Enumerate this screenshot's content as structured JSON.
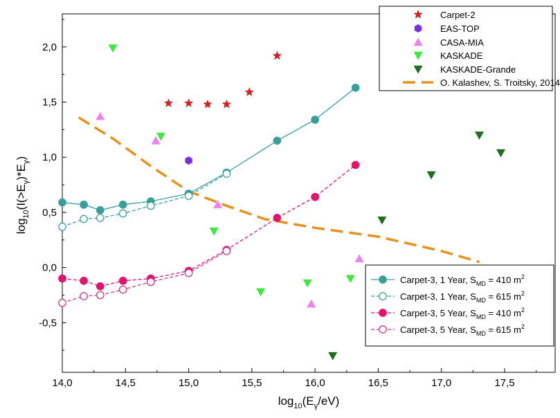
{
  "chart_data": {
    "type": "scatter",
    "xlabel": {
      "prefix": "log",
      "base": "10",
      "body": "(E",
      "sub": "γ",
      "tail": "/eV)"
    },
    "ylabel": {
      "prefix": "log",
      "base": "10",
      "a": "(I(>E",
      "sub1": "γ",
      "b": ")*E",
      "sub2": "γ",
      "c": ")"
    },
    "xlim": [
      14.0,
      17.9
    ],
    "ylim": [
      -0.95,
      2.3
    ],
    "xticks": [
      14.0,
      14.5,
      15.0,
      15.5,
      16.0,
      16.5,
      17.0,
      17.5
    ],
    "xtick_labels": [
      "14,0",
      "14,5",
      "15,0",
      "15,5",
      "16,0",
      "16,5",
      "17,0",
      "17,5"
    ],
    "yticks": [
      -0.5,
      0.0,
      0.5,
      1.0,
      1.5,
      2.0
    ],
    "ytick_labels": [
      "-0,5",
      "0,0",
      "0,5",
      "1,0",
      "1,5",
      "2,0"
    ],
    "legend_top": {
      "placement": "top-right",
      "entries": [
        {
          "label": "Carpet-2",
          "marker": "star",
          "color": "#d42020"
        },
        {
          "label": "EAS-TOP",
          "marker": "hexagon",
          "color": "#7b2fd6"
        },
        {
          "label": "CASA-MIA",
          "marker": "triangle-up",
          "color": "#ee82ee"
        },
        {
          "label": "KASKADE",
          "marker": "triangle-down",
          "color": "#3ee83e"
        },
        {
          "label": "KASKADE-Grande",
          "marker": "triangle-down",
          "color": "#1f6e1f"
        },
        {
          "label": "O. Kalashev, S. Troitsky, 2014",
          "marker": "dash",
          "color": "#e8901e"
        }
      ]
    },
    "legend_bottom": {
      "placement": "lower-right",
      "entries": [
        {
          "pre": "Carpet-3, 1 Year, S",
          "sub": "MD",
          "post": " = 410 m",
          "sup": "2",
          "color": "#3a9e9a",
          "filled": true,
          "dashed": false
        },
        {
          "pre": "Carpet-3, 1 Year, S",
          "sub": "MD",
          "post": " = 615 m",
          "sup": "2",
          "color": "#3a9e9a",
          "filled": false,
          "dashed": true
        },
        {
          "pre": "Carpet-3, 5 Year, S",
          "sub": "MD",
          "post": " = 410 m",
          "sup": "2",
          "color": "#e0156e",
          "filled": true,
          "dashed": true
        },
        {
          "pre": "Carpet-3, 5 Year, S",
          "sub": "MD",
          "post": " = 615 m",
          "sup": "2",
          "color": "#c83a8e",
          "filled": false,
          "dashed": true
        }
      ]
    },
    "series": [
      {
        "name": "Carpet-2",
        "kind": "points",
        "marker": "star",
        "color": "#d42020",
        "x": [
          14.84,
          15.0,
          15.15,
          15.3,
          15.48,
          15.7
        ],
        "y": [
          1.49,
          1.49,
          1.48,
          1.48,
          1.59,
          1.92
        ]
      },
      {
        "name": "EAS-TOP",
        "kind": "points",
        "marker": "hexagon",
        "color": "#7b2fd6",
        "x": [
          15.0
        ],
        "y": [
          0.97
        ]
      },
      {
        "name": "CASA-MIA",
        "kind": "points",
        "marker": "triangle-up",
        "color": "#ee82ee",
        "x": [
          14.3,
          14.74,
          15.23,
          15.97,
          16.35
        ],
        "y": [
          1.37,
          1.15,
          0.57,
          -0.33,
          0.08
        ]
      },
      {
        "name": "KASKADE",
        "kind": "points",
        "marker": "triangle-down",
        "color": "#3ee83e",
        "x": [
          14.4,
          14.78,
          15.2,
          15.57,
          15.94,
          16.28
        ],
        "y": [
          1.99,
          1.19,
          0.33,
          -0.22,
          -0.14,
          -0.1
        ]
      },
      {
        "name": "KASKADE-Grande",
        "kind": "points",
        "marker": "triangle-down",
        "color": "#1f6e1f",
        "x": [
          16.14,
          16.53,
          16.92,
          17.3,
          17.47
        ],
        "y": [
          -0.8,
          0.43,
          0.84,
          1.2,
          1.04
        ]
      },
      {
        "name": "O. Kalashev, S. Troitsky, 2014",
        "kind": "line",
        "color": "#e8901e",
        "x": [
          14.13,
          14.4,
          14.7,
          15.0,
          15.3,
          15.6,
          16.0,
          16.5,
          17.0,
          17.3
        ],
        "y": [
          1.36,
          1.17,
          0.92,
          0.69,
          0.56,
          0.44,
          0.36,
          0.28,
          0.15,
          0.05
        ]
      },
      {
        "name": "Carpet-3, 1 Year, S_MD = 410 m^2",
        "kind": "linepoints",
        "color": "#3a9e9a",
        "filled": true,
        "dashed": false,
        "x": [
          14.0,
          14.17,
          14.3,
          14.48,
          14.7,
          15.0,
          15.3,
          15.7,
          16.0,
          16.32
        ],
        "y": [
          0.59,
          0.57,
          0.52,
          0.57,
          0.6,
          0.67,
          0.86,
          1.15,
          1.34,
          1.63
        ]
      },
      {
        "name": "Carpet-3, 1 Year, S_MD = 615 m^2",
        "kind": "linepoints",
        "color": "#3a9e9a",
        "filled": false,
        "dashed": true,
        "x": [
          14.0,
          14.17,
          14.3,
          14.48,
          14.7,
          15.0,
          15.3
        ],
        "y": [
          0.37,
          0.44,
          0.45,
          0.49,
          0.56,
          0.65,
          0.85
        ]
      },
      {
        "name": "Carpet-3, 5 Year, S_MD = 410 m^2",
        "kind": "linepoints",
        "color": "#e0156e",
        "filled": true,
        "dashed": true,
        "x": [
          14.0,
          14.17,
          14.3,
          14.48,
          14.7,
          15.0,
          15.3,
          15.7,
          16.0,
          16.32
        ],
        "y": [
          -0.1,
          -0.12,
          -0.17,
          -0.12,
          -0.1,
          -0.03,
          0.16,
          0.45,
          0.64,
          0.93
        ]
      },
      {
        "name": "Carpet-3, 5 Year, S_MD = 615 m^2",
        "kind": "linepoints",
        "color": "#c83a8e",
        "filled": false,
        "dashed": true,
        "x": [
          14.0,
          14.17,
          14.3,
          14.48,
          14.7,
          15.0,
          15.3
        ],
        "y": [
          -0.32,
          -0.26,
          -0.25,
          -0.2,
          -0.13,
          -0.05,
          0.15
        ]
      }
    ]
  }
}
